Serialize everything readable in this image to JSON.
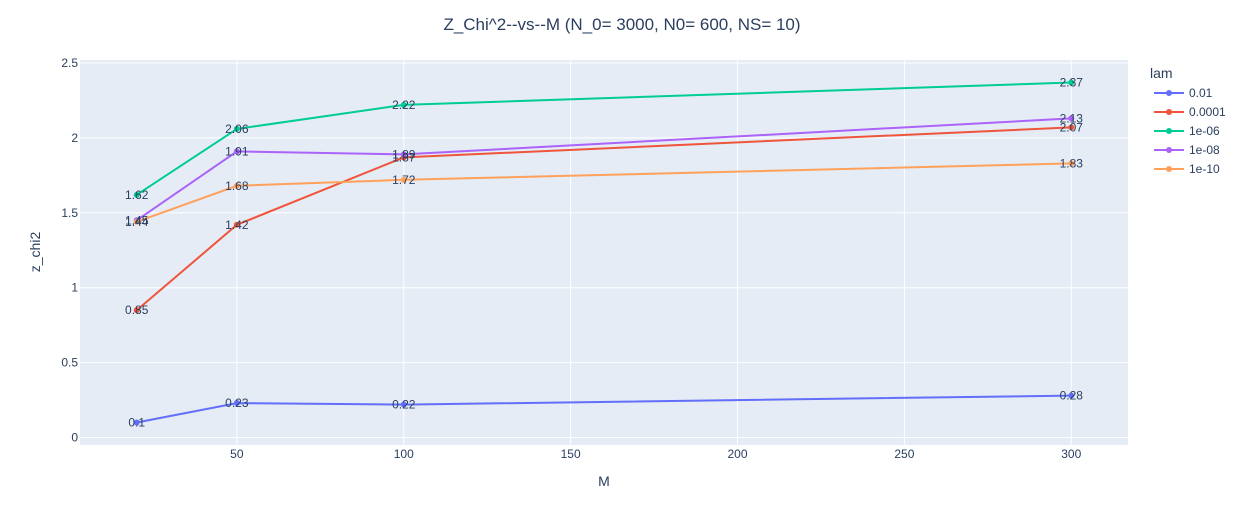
{
  "chart_data": {
    "type": "line",
    "title": "Z_Chi^2--vs--M  (N_0= 3000, N0= 600, NS= 10)",
    "xlabel": "M",
    "ylabel": "z_chi2",
    "xlim": [
      3,
      317
    ],
    "ylim": [
      -0.05,
      2.52
    ],
    "x_ticks": [
      50,
      100,
      150,
      200,
      250,
      300
    ],
    "y_ticks": [
      0,
      0.5,
      1,
      1.5,
      2,
      2.5
    ],
    "x_tick_labels": [
      "50",
      "100",
      "150",
      "200",
      "250",
      "300"
    ],
    "y_tick_labels": [
      "0",
      "0.5",
      "1",
      "1.5",
      "2",
      "2.5"
    ],
    "legend_title": "lam",
    "legend_position": "right",
    "grid": true,
    "x": [
      20,
      50,
      100,
      300
    ],
    "series": [
      {
        "name": "0.01",
        "color": "#636efa",
        "values": [
          0.1,
          0.23,
          0.22,
          0.28
        ],
        "labels": [
          "0.1",
          "0.23",
          "0.22",
          "0.28"
        ]
      },
      {
        "name": "0.0001",
        "color": "#ef553b",
        "values": [
          0.85,
          1.42,
          1.87,
          2.07
        ],
        "labels": [
          "0.85",
          "1.42",
          "1.87",
          "2.07"
        ]
      },
      {
        "name": "1e-06",
        "color": "#00cc96",
        "values": [
          1.62,
          2.06,
          2.22,
          2.37
        ],
        "labels": [
          "1.62",
          "2.06",
          "2.22",
          "2.37"
        ]
      },
      {
        "name": "1e-08",
        "color": "#ab63fa",
        "values": [
          1.45,
          1.91,
          1.89,
          2.13
        ],
        "labels": [
          "1.45",
          "1.91",
          "1.89",
          "2.13"
        ]
      },
      {
        "name": "1e-10",
        "color": "#ffa15a",
        "values": [
          1.44,
          1.68,
          1.72,
          1.83
        ],
        "labels": [
          "1.44",
          "1.68",
          "1.72",
          "1.83"
        ]
      }
    ]
  }
}
